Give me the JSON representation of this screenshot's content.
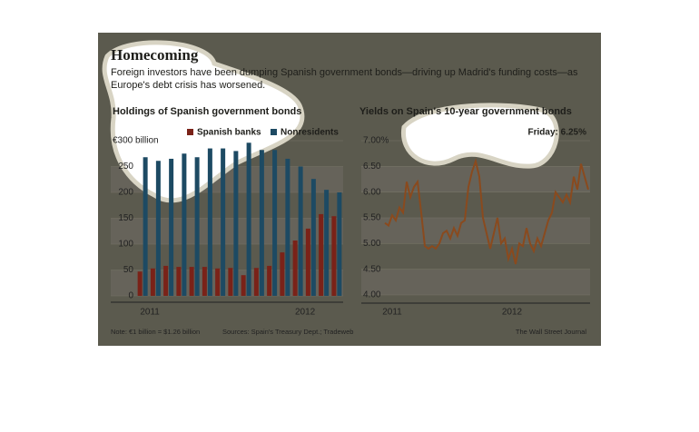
{
  "header": {
    "title": "Homecoming",
    "subtitle_lines": [
      "Foreign investors have been dumping Spanish government bonds—driving up Madrid's funding costs—as",
      "Europe's debt crisis has worsened."
    ]
  },
  "chart_data": [
    {
      "type": "bar",
      "title": "Holdings of Spanish government bonds",
      "categories": [
        "2011",
        null,
        null,
        null,
        null,
        null,
        null,
        null,
        null,
        null,
        null,
        null,
        "2012",
        null,
        null,
        null
      ],
      "series": [
        {
          "name": "Spanish banks",
          "color": "#7a2218",
          "values": [
            47,
            53,
            58,
            56,
            56,
            56,
            53,
            54,
            40,
            54,
            58,
            84,
            107,
            130,
            158,
            154
          ]
        },
        {
          "name": "Nonresidents",
          "color": "#1d4a63",
          "values": [
            268,
            261,
            265,
            275,
            268,
            285,
            285,
            280,
            296,
            282,
            282,
            265,
            250,
            226,
            205,
            200
          ]
        }
      ],
      "ylim": [
        0,
        300
      ],
      "yticks": [
        0,
        50,
        100,
        150,
        200,
        250,
        {
          "value": 300,
          "label": "€300 billion"
        }
      ],
      "grid": true,
      "legend": "top"
    },
    {
      "type": "line",
      "title": "Yields on Spain's 10-year government bonds",
      "annotation": "Friday: 6.25%",
      "categories": [
        null,
        null,
        "2011",
        null,
        null,
        null,
        null,
        null,
        null,
        null,
        null,
        null,
        null,
        null,
        null,
        null,
        null,
        null,
        null,
        null,
        null,
        null,
        null,
        null,
        null,
        null,
        null,
        null,
        null,
        null,
        null,
        null,
        null,
        null,
        null,
        "2012",
        null,
        null,
        null,
        null,
        null,
        null,
        null,
        null,
        null,
        null,
        null,
        null,
        null,
        null,
        null,
        null,
        null,
        null,
        null,
        null,
        null
      ],
      "series": [
        {
          "name": null,
          "color": "#8a4a1e",
          "values": [
            5.4,
            5.35,
            5.55,
            5.45,
            5.7,
            5.6,
            6.2,
            5.9,
            6.1,
            6.2,
            5.6,
            4.95,
            4.9,
            4.95,
            4.9,
            5.0,
            5.2,
            5.25,
            5.1,
            5.3,
            5.15,
            5.4,
            5.45,
            6.1,
            6.4,
            6.6,
            6.3,
            5.5,
            5.2,
            4.9,
            5.2,
            5.5,
            5.0,
            5.1,
            4.7,
            4.9,
            4.6,
            5.0,
            4.95,
            5.3,
            5.0,
            4.85,
            5.1,
            4.95,
            5.2,
            5.45,
            5.6,
            6.0,
            5.9,
            5.8,
            5.95,
            5.8,
            6.3,
            6.05,
            6.55,
            6.3,
            6.05
          ]
        }
      ],
      "ylim": [
        4,
        7
      ],
      "yticks": [
        {
          "value": 4,
          "label": "4.00"
        },
        {
          "value": 4.5,
          "label": "4.50"
        },
        {
          "value": 5,
          "label": "5.00"
        },
        {
          "value": 5.5,
          "label": "5.50"
        },
        {
          "value": 6,
          "label": "6.00"
        },
        {
          "value": 6.5,
          "label": "6.50"
        },
        {
          "value": 7,
          "label": "7.00%"
        }
      ],
      "grid": true
    }
  ],
  "footer": {
    "note": "Note: €1 billion = $1.26 billion",
    "sources": "Sources: Spain's Treasury Dept.; Tradeweb",
    "credit": "The Wall Street Journal"
  }
}
